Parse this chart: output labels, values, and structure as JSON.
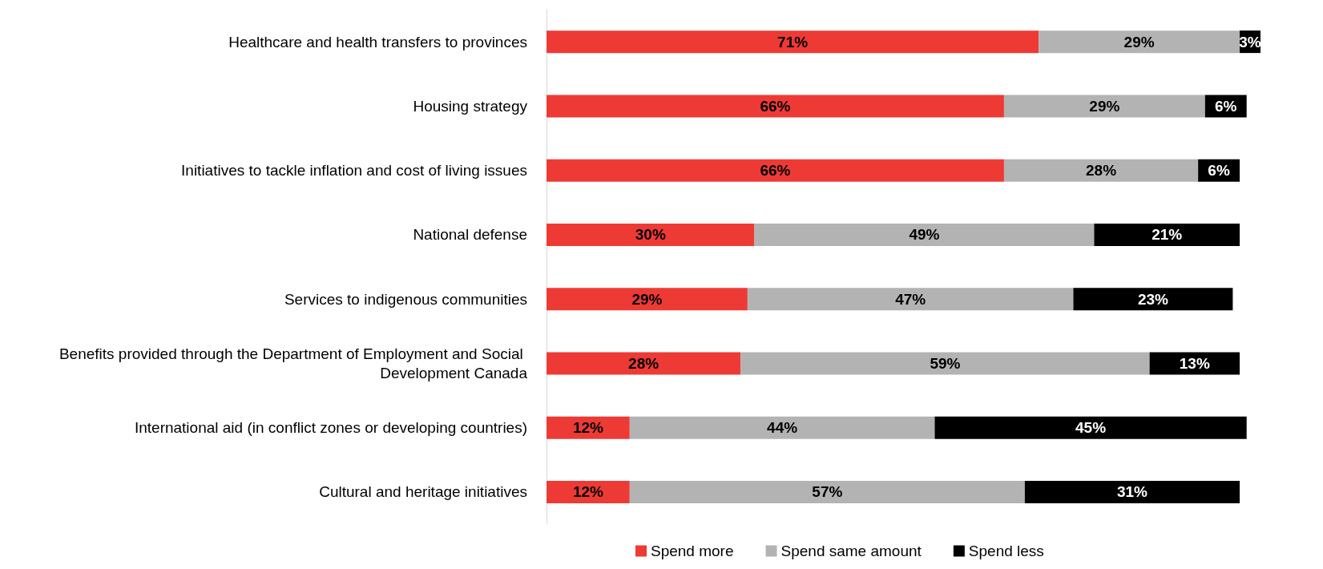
{
  "chart_data": {
    "type": "bar",
    "orientation": "horizontal",
    "stacked": true,
    "legend": "bottom",
    "categories": [
      "Healthcare and health transfers to provinces",
      "Housing strategy",
      "Initiatives to tackle inflation and cost of living issues",
      "National defense",
      "Services to indigenous communities",
      "Benefits provided through the Department of Employment and Social Development Canada",
      "International aid (in conflict zones or developing countries)",
      "Cultural and heritage initiatives"
    ],
    "series": [
      {
        "name": "Spend more",
        "color": "#ee3a35",
        "values": [
          71,
          66,
          66,
          30,
          29,
          28,
          12,
          12
        ],
        "value_labels": [
          "71%",
          "66%",
          "66%",
          "30%",
          "29%",
          "28%",
          "12%",
          "12%"
        ]
      },
      {
        "name": "Spend same amount",
        "color": "#b3b3b3",
        "values": [
          29,
          29,
          28,
          49,
          47,
          59,
          44,
          57
        ],
        "value_labels": [
          "29%",
          "29%",
          "28%",
          "49%",
          "47%",
          "59%",
          "44%",
          "57%"
        ]
      },
      {
        "name": "Spend less",
        "color": "#000000",
        "values": [
          3,
          6,
          6,
          21,
          23,
          13,
          45,
          31
        ],
        "value_labels": [
          "3%",
          "6%",
          "6%",
          "21%",
          "23%",
          "13%",
          "45%",
          "31%"
        ]
      }
    ]
  }
}
